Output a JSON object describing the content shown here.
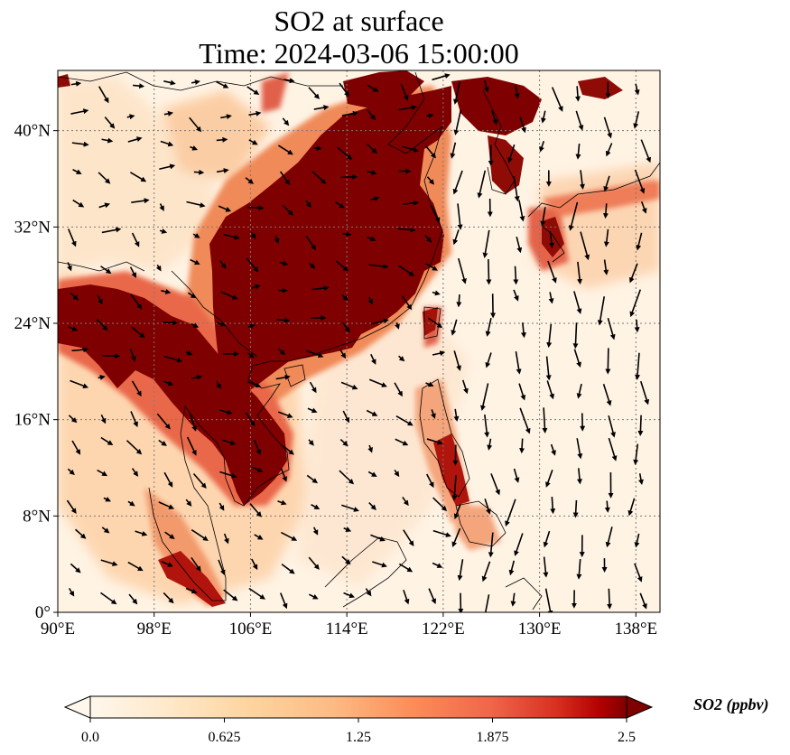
{
  "title": {
    "line1": "SO2 at surface",
    "line2": "Time: 2024-03-06 15:00:00"
  },
  "map": {
    "projection": "PlateCarree",
    "extent": {
      "lon": [
        90,
        140
      ],
      "lat": [
        0,
        45
      ]
    },
    "lon_ticks": [
      {
        "value": 90,
        "label": "90°E"
      },
      {
        "value": 98,
        "label": "98°E"
      },
      {
        "value": 106,
        "label": "106°E"
      },
      {
        "value": 114,
        "label": "114°E"
      },
      {
        "value": 122,
        "label": "122°E"
      },
      {
        "value": 130,
        "label": "130°E"
      },
      {
        "value": 138,
        "label": "138°E"
      }
    ],
    "lat_ticks": [
      {
        "value": 0,
        "label": "0°"
      },
      {
        "value": 8,
        "label": "8°N"
      },
      {
        "value": 16,
        "label": "16°N"
      },
      {
        "value": 24,
        "label": "24°N"
      },
      {
        "value": 32,
        "label": "32°N"
      },
      {
        "value": 40,
        "label": "40°N"
      }
    ],
    "gridlines": true,
    "field_colors": {
      "low": "#fff5eb",
      "mid": "#f39b5a",
      "high": "#7f0000"
    },
    "wind_vectors": true
  },
  "colorbar": {
    "label": "SO2 (ppbv)",
    "range": [
      0,
      2.5
    ],
    "ticks": [
      {
        "value": 0,
        "label": "0.0"
      },
      {
        "value": 0.625,
        "label": "0.625"
      },
      {
        "value": 1.25,
        "label": "1.25"
      },
      {
        "value": 1.875,
        "label": "1.875"
      },
      {
        "value": 2.5,
        "label": "2.5"
      }
    ],
    "extend": "both",
    "colormap": "OrRd"
  }
}
